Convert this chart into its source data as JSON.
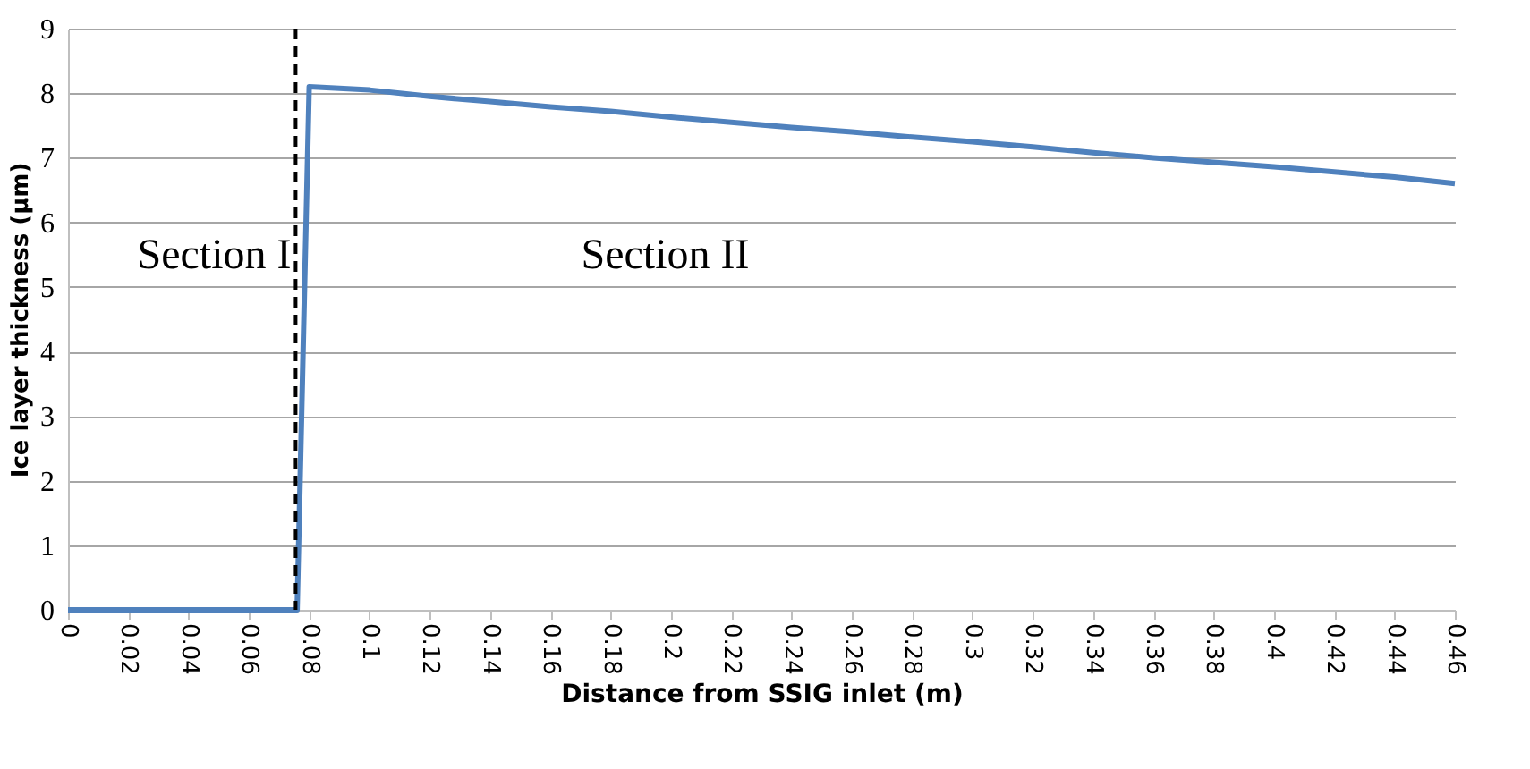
{
  "chart_data": {
    "type": "line",
    "xlabel": "Distance from SSIG inlet (m)",
    "ylabel": "Ice layer thickness (µm)",
    "x": [
      0,
      0.02,
      0.04,
      0.06,
      0.076,
      0.08,
      0.1,
      0.12,
      0.14,
      0.16,
      0.18,
      0.2,
      0.22,
      0.24,
      0.26,
      0.28,
      0.3,
      0.32,
      0.34,
      0.36,
      0.38,
      0.4,
      0.42,
      0.44,
      0.46
    ],
    "series": [
      {
        "color": "#4f81bd",
        "values": [
          0,
          0,
          0,
          0,
          0,
          8.1,
          8.05,
          7.95,
          7.87,
          7.79,
          7.72,
          7.63,
          7.55,
          7.47,
          7.4,
          7.32,
          7.25,
          7.17,
          7.08,
          7.0,
          6.93,
          6.86,
          6.78,
          6.7,
          6.6
        ]
      }
    ],
    "xlim": [
      0,
      0.46
    ],
    "xticks": [
      0,
      0.02,
      0.04,
      0.06,
      0.08,
      0.1,
      0.12,
      0.14,
      0.16,
      0.18,
      0.2,
      0.22,
      0.24,
      0.26,
      0.28,
      0.3,
      0.32,
      0.34,
      0.36,
      0.38,
      0.4,
      0.42,
      0.44,
      0.46
    ],
    "ylim": [
      0,
      9
    ],
    "yticks": [
      0,
      1,
      2,
      3,
      4,
      5,
      6,
      7,
      8,
      9
    ],
    "grid": "y",
    "marker": "none",
    "line_style": "solid",
    "ref_lines": [
      {
        "axis": "x",
        "value": 0.0755,
        "color": "#000000",
        "line_style": "dashed"
      }
    ],
    "annotations": [
      "Section I",
      "Section II"
    ]
  }
}
